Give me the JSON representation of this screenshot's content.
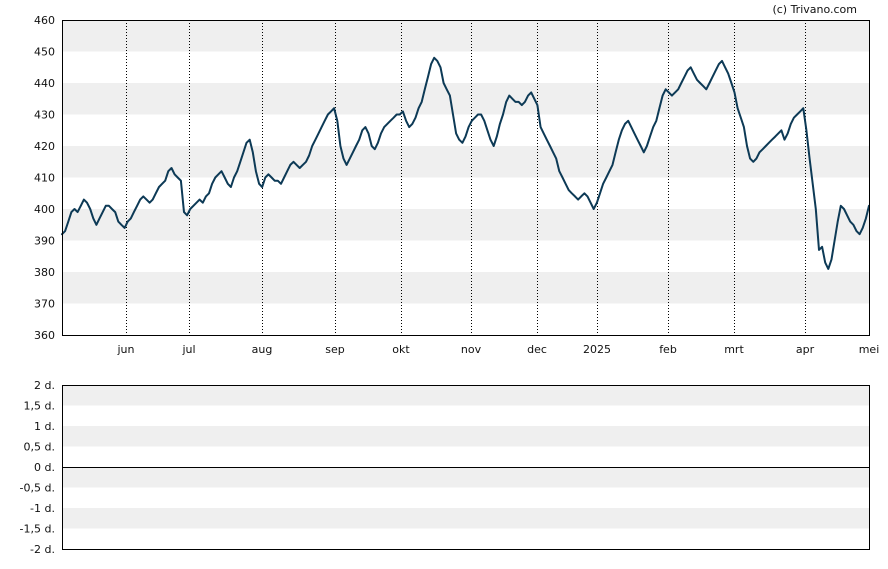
{
  "copyright": "(c) Trivano.com",
  "chart_data": [
    {
      "type": "line",
      "y_ticks": [
        "460",
        "450",
        "440",
        "430",
        "420",
        "410",
        "400",
        "390",
        "380",
        "370",
        "360"
      ],
      "ylim": [
        360,
        460
      ],
      "x_labels": [
        "jun",
        "jul",
        "aug",
        "sep",
        "okt",
        "nov",
        "dec",
        "2025",
        "feb",
        "mrt",
        "apr",
        "mei"
      ],
      "grid": "alternating horizontal bands, dotted vertical lines",
      "series": [
        {
          "values": [
            392,
            393,
            396,
            399,
            400,
            399,
            401,
            403,
            402,
            400,
            397,
            395,
            397,
            399,
            401,
            401,
            400,
            399,
            396,
            395,
            394,
            396,
            397,
            399,
            401,
            403,
            404,
            403,
            402,
            403,
            405,
            407,
            408,
            409,
            412,
            413,
            411,
            410,
            409,
            399,
            398,
            400,
            401,
            402,
            403,
            402,
            404,
            405,
            408,
            410,
            411,
            412,
            410,
            408,
            407,
            410,
            412,
            415,
            418,
            421,
            422,
            418,
            412,
            408,
            407,
            410,
            411,
            410,
            409,
            409,
            408,
            410,
            412,
            414,
            415,
            414,
            413,
            414,
            415,
            417,
            420,
            422,
            424,
            426,
            428,
            430,
            431,
            432,
            428,
            420,
            416,
            414,
            416,
            418,
            420,
            422,
            425,
            426,
            424,
            420,
            419,
            421,
            424,
            426,
            427,
            428,
            429,
            430,
            430,
            431,
            428,
            426,
            427,
            429,
            432,
            434,
            438,
            442,
            446,
            448,
            447,
            445,
            440,
            438,
            436,
            430,
            424,
            422,
            421,
            423,
            426,
            428,
            429,
            430,
            430,
            428,
            425,
            422,
            420,
            423,
            427,
            430,
            434,
            436,
            435,
            434,
            434,
            433,
            434,
            436,
            437,
            435,
            433,
            426,
            424,
            422,
            420,
            418,
            416,
            412,
            410,
            408,
            406,
            405,
            404,
            403,
            404,
            405,
            404,
            402,
            400,
            402,
            405,
            408,
            410,
            412,
            414,
            418,
            422,
            425,
            427,
            428,
            426,
            424,
            422,
            420,
            418,
            420,
            423,
            426,
            428,
            432,
            436,
            438,
            437,
            436,
            437,
            438,
            440,
            442,
            444,
            445,
            443,
            441,
            440,
            439,
            438,
            440,
            442,
            444,
            446,
            447,
            445,
            443,
            440,
            437,
            432,
            429,
            426,
            420,
            416,
            415,
            416,
            418,
            419,
            420,
            421,
            422,
            423,
            424,
            425,
            422,
            424,
            427,
            429,
            430,
            431,
            432,
            425,
            416,
            408,
            400,
            387,
            388,
            383,
            381,
            384,
            390,
            396,
            401,
            400,
            398,
            396,
            395,
            393,
            392,
            394,
            397,
            401
          ]
        }
      ]
    },
    {
      "type": "line",
      "y_ticks": [
        "2 d.",
        "1,5 d.",
        "1 d.",
        "0,5 d.",
        "0 d.",
        "-0,5 d.",
        "-1 d.",
        "-1,5 d.",
        "-2 d."
      ],
      "ylim": [
        -2,
        2
      ],
      "grid": "alternating horizontal bands",
      "series": [
        {
          "values": []
        }
      ]
    }
  ]
}
